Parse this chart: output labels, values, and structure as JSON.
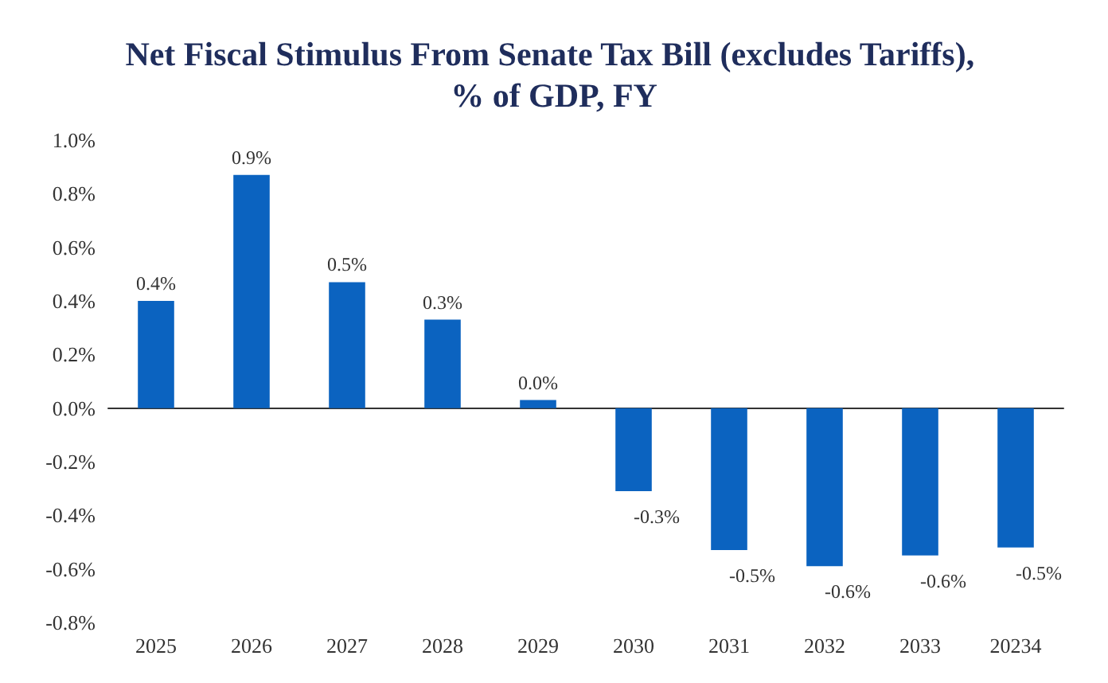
{
  "chart_data": {
    "type": "bar",
    "title": "Net Fiscal Stimulus From Senate Tax Bill (excludes Tariffs), % of GDP, FY",
    "categories": [
      "2025",
      "2026",
      "2027",
      "2028",
      "2029",
      "2030",
      "2031",
      "2032",
      "2033",
      "20234"
    ],
    "values": [
      0.4,
      0.87,
      0.47,
      0.33,
      0.03,
      -0.31,
      -0.53,
      -0.59,
      -0.55,
      -0.52
    ],
    "value_labels": [
      "0.4%",
      "0.9%",
      "0.5%",
      "0.3%",
      "0.0%",
      "-0.3%",
      "-0.5%",
      "-0.6%",
      "-0.6%",
      "-0.5%"
    ],
    "color": "#0b63c0",
    "ylim": [
      -0.8,
      1.0
    ],
    "yticks": [
      {
        "value": -0.8,
        "label": "-0.8%"
      },
      {
        "value": -0.6,
        "label": "-0.6%"
      },
      {
        "value": -0.4,
        "label": "-0.4%"
      },
      {
        "value": -0.2,
        "label": "-0.2%"
      },
      {
        "value": 0,
        "label": "0.0%"
      },
      {
        "value": 0.2,
        "label": "0.2%"
      },
      {
        "value": 0.4,
        "label": "0.4%"
      },
      {
        "value": 0.6,
        "label": "0.6%"
      },
      {
        "value": 0.8,
        "label": "0.8%"
      },
      {
        "value": 1.0,
        "label": "1.0%"
      }
    ],
    "tick_labels": true
  }
}
